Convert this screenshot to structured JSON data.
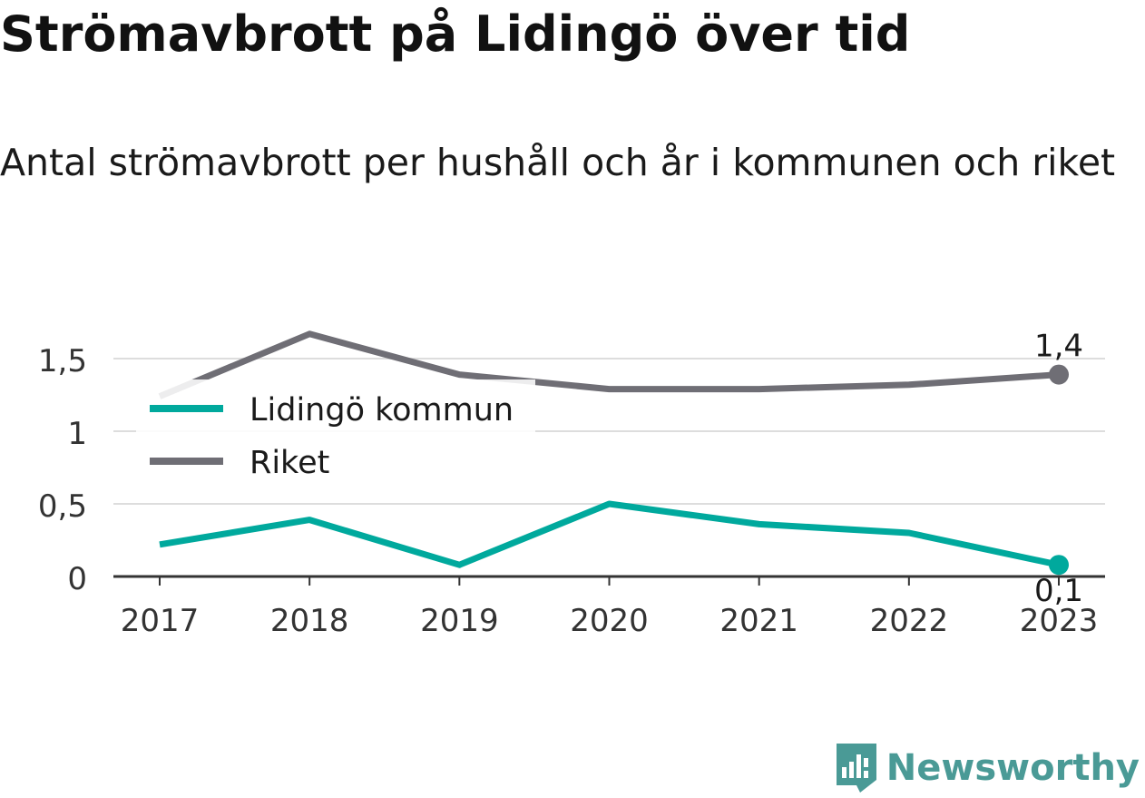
{
  "header": {
    "title": "Strömavbrott på Lidingö över tid",
    "subtitle": "Antal strömavbrott per hushåll och år i kommunen och riket"
  },
  "chart_data": {
    "type": "line",
    "title": "Strömavbrott på Lidingö över tid",
    "subtitle": "Antal strömavbrott per hushåll och år i kommunen och riket",
    "x": [
      "2017",
      "2018",
      "2019",
      "2020",
      "2021",
      "2022",
      "2023"
    ],
    "y_ticks": [
      {
        "value": 0,
        "label": "0"
      },
      {
        "value": 0.5,
        "label": "0,5"
      },
      {
        "value": 1,
        "label": "1"
      },
      {
        "value": 1.5,
        "label": "1,5"
      }
    ],
    "ylim": [
      0,
      1.85
    ],
    "grid": true,
    "legend": "top-left",
    "series": [
      {
        "name": "Lidingö kommun",
        "color": "#00a99d",
        "values": [
          0.22,
          0.39,
          0.08,
          0.5,
          0.36,
          0.3,
          0.08
        ],
        "end_label": "0,1"
      },
      {
        "name": "Riket",
        "color": "#6f6e75",
        "values": [
          1.24,
          1.67,
          1.39,
          1.29,
          1.29,
          1.32,
          1.39
        ],
        "end_label": "1,4"
      }
    ]
  },
  "logo": {
    "text": "Newsworthy",
    "color": "#4a9a96"
  }
}
